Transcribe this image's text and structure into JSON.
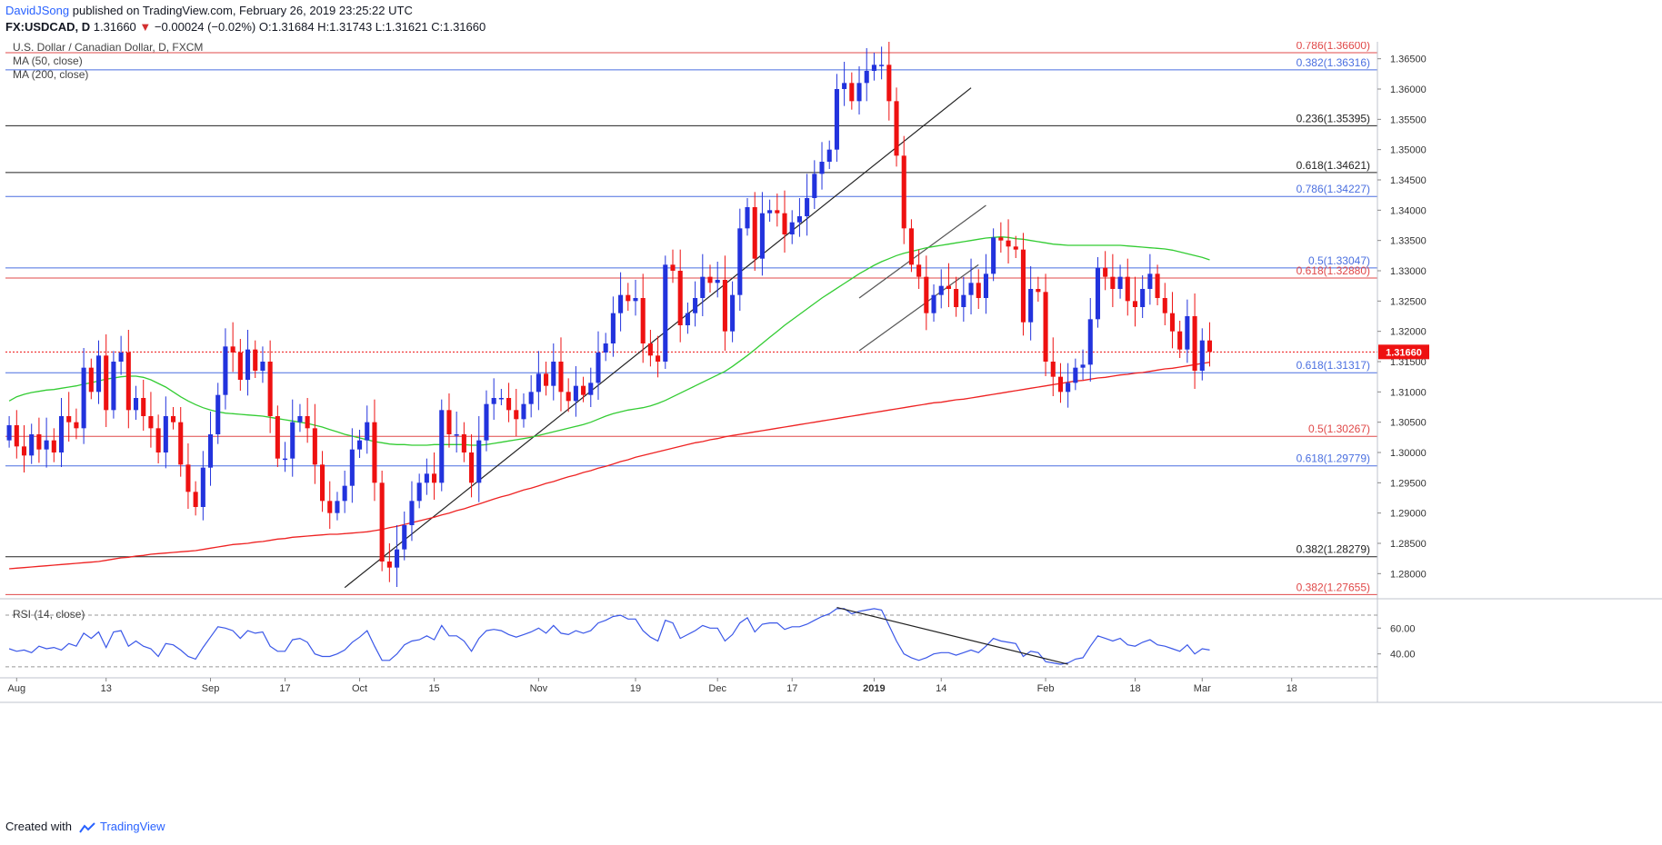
{
  "header": {
    "author": "DavidJSong",
    "published_text": "published on TradingView.com, February 26, 2019 23:25:22 UTC",
    "symbol": "FX:USDCAD, D",
    "last": "1.31660",
    "change_arrow": "▼",
    "change": "−0.00024 (−0.02%)",
    "ohlc": "O:1.31684 H:1.31743 L:1.31621 C:1.31660"
  },
  "legend": {
    "title": "U.S. Dollar / Canadian Dollar, D, FXCM",
    "ma50": "MA (50, close)",
    "ma200": "MA (200, close)",
    "rsi": "RSI (14, close)"
  },
  "footer": {
    "created_with": "Created with",
    "brand": "TradingView"
  },
  "colors": {
    "up": "#2233dd",
    "down": "#ee1111",
    "ma50": "#33cc33",
    "ma200": "#ee2222",
    "fib_red": "#e04848",
    "fib_blue": "#4a6fe0",
    "fib_black": "#222222",
    "rsi": "#3a57e8",
    "price_tag": "#ee1111",
    "grid": "#e8eaf0"
  },
  "chart_data": {
    "type": "candlestick",
    "title": "U.S. Dollar / Canadian Dollar, D, FXCM",
    "ylim": [
      1.276,
      1.3675
    ],
    "y_ticks": [
      "1.36500",
      "1.36000",
      "1.35500",
      "1.35000",
      "1.34500",
      "1.34000",
      "1.33500",
      "1.33000",
      "1.32500",
      "1.32000",
      "1.31500",
      "1.31000",
      "1.30500",
      "1.30000",
      "1.29500",
      "1.29000",
      "1.28500",
      "1.28000"
    ],
    "x_ticks": [
      {
        "label": "Aug",
        "i": 1
      },
      {
        "label": "13",
        "i": 13
      },
      {
        "label": "Sep",
        "i": 27
      },
      {
        "label": "17",
        "i": 37
      },
      {
        "label": "Oct",
        "i": 47
      },
      {
        "label": "15",
        "i": 57
      },
      {
        "label": "Nov",
        "i": 71
      },
      {
        "label": "19",
        "i": 84
      },
      {
        "label": "Dec",
        "i": 95
      },
      {
        "label": "17",
        "i": 105
      },
      {
        "label": "2019",
        "i": 116
      },
      {
        "label": "14",
        "i": 125
      },
      {
        "label": "Feb",
        "i": 139
      },
      {
        "label": "18",
        "i": 151
      },
      {
        "label": "Mar",
        "i": 160
      },
      {
        "label": "18",
        "i": 172
      }
    ],
    "n_slots": 184,
    "last_price_label": "1.31660",
    "levels": [
      {
        "label": "0.786(1.36600)",
        "value": 1.366,
        "color": "red"
      },
      {
        "label": "0.382(1.36316)",
        "value": 1.36316,
        "color": "blue"
      },
      {
        "label": "0.236(1.35395)",
        "value": 1.35395,
        "color": "black"
      },
      {
        "label": "0.618(1.34621)",
        "value": 1.34621,
        "color": "black"
      },
      {
        "label": "0.786(1.34227)",
        "value": 1.34227,
        "color": "blue"
      },
      {
        "label": "0.5(1.33047)",
        "value": 1.33047,
        "color": "blue"
      },
      {
        "label": "0.618(1.32880)",
        "value": 1.3288,
        "color": "red"
      },
      {
        "label": "0.618(1.31317)",
        "value": 1.31317,
        "color": "blue"
      },
      {
        "label": "0.5(1.30267)",
        "value": 1.30267,
        "color": "red"
      },
      {
        "label": "0.618(1.29779)",
        "value": 1.29779,
        "color": "blue"
      },
      {
        "label": "0.382(1.28279)",
        "value": 1.28279,
        "color": "black"
      },
      {
        "label": "0.382(1.27655)",
        "value": 1.27655,
        "color": "red"
      }
    ],
    "closes": [
      1.3045,
      1.301,
      1.2995,
      1.303,
      1.3005,
      1.302,
      1.3,
      1.306,
      1.305,
      1.304,
      1.314,
      1.31,
      1.316,
      1.307,
      1.315,
      1.3165,
      1.307,
      1.309,
      1.306,
      1.304,
      1.3,
      1.306,
      1.305,
      1.298,
      1.2935,
      1.291,
      1.2975,
      1.303,
      1.3095,
      1.3175,
      1.3165,
      1.312,
      1.317,
      1.3135,
      1.315,
      1.306,
      1.299,
      1.299,
      1.305,
      1.306,
      1.304,
      1.298,
      1.292,
      1.29,
      1.292,
      1.2945,
      1.3005,
      1.302,
      1.305,
      1.295,
      1.282,
      1.281,
      1.284,
      1.288,
      1.292,
      1.295,
      1.2965,
      1.295,
      1.307,
      1.303,
      1.303,
      1.3,
      1.295,
      1.302,
      1.308,
      1.309,
      1.309,
      1.307,
      1.3055,
      1.308,
      1.31,
      1.313,
      1.311,
      1.315,
      1.31,
      1.3085,
      1.311,
      1.3095,
      1.3115,
      1.3165,
      1.318,
      1.323,
      1.326,
      1.325,
      1.3255,
      1.318,
      1.316,
      1.315,
      1.331,
      1.33,
      1.321,
      1.323,
      1.3255,
      1.329,
      1.328,
      1.3285,
      1.32,
      1.326,
      1.337,
      1.3405,
      1.332,
      1.3395,
      1.34,
      1.3395,
      1.336,
      1.338,
      1.339,
      1.342,
      1.346,
      1.348,
      1.35,
      1.36,
      1.361,
      1.358,
      1.361,
      1.363,
      1.364,
      1.364,
      1.358,
      1.349,
      1.337,
      1.331,
      1.329,
      1.323,
      1.326,
      1.3275,
      1.327,
      1.324,
      1.326,
      1.328,
      1.3255,
      1.3295,
      1.3355,
      1.335,
      1.334,
      1.3335,
      1.3215,
      1.327,
      1.3265,
      1.315,
      1.3125,
      1.31,
      1.3115,
      1.314,
      1.3145,
      1.322,
      1.3305,
      1.329,
      1.327,
      1.329,
      1.325,
      1.324,
      1.327,
      1.3295,
      1.3255,
      1.323,
      1.32,
      1.317,
      1.3225,
      1.3135,
      1.3185,
      1.3166
    ],
    "ma50": [
      1.3085,
      1.3092,
      1.3096,
      1.3099,
      1.3101,
      1.3103,
      1.3104,
      1.3106,
      1.3108,
      1.311,
      1.3113,
      1.3115,
      1.3118,
      1.3121,
      1.3123,
      1.3125,
      1.3126,
      1.3126,
      1.3124,
      1.312,
      1.3114,
      1.3108,
      1.31,
      1.3092,
      1.3085,
      1.3079,
      1.3074,
      1.307,
      1.3067,
      1.3065,
      1.3064,
      1.3063,
      1.3062,
      1.3061,
      1.306,
      1.3058,
      1.3056,
      1.3054,
      1.3052,
      1.305,
      1.3048,
      1.3045,
      1.3042,
      1.3038,
      1.3034,
      1.303,
      1.3027,
      1.3024,
      1.3021,
      1.3018,
      1.3016,
      1.3014,
      1.3013,
      1.3013,
      1.3012,
      1.3012,
      1.3012,
      1.3013,
      1.3013,
      1.3013,
      1.3013,
      1.3013,
      1.3012,
      1.3012,
      1.3013,
      1.3015,
      1.3017,
      1.3019,
      1.3021,
      1.3023,
      1.3025,
      1.3028,
      1.3031,
      1.3034,
      1.3037,
      1.304,
      1.3043,
      1.3046,
      1.305,
      1.3055,
      1.306,
      1.3064,
      1.3067,
      1.307,
      1.3072,
      1.3074,
      1.3077,
      1.3081,
      1.3086,
      1.3092,
      1.3098,
      1.3104,
      1.311,
      1.3116,
      1.3122,
      1.3128,
      1.3134,
      1.3142,
      1.3151,
      1.316,
      1.317,
      1.318,
      1.319,
      1.32,
      1.321,
      1.3219,
      1.3228,
      1.3237,
      1.3246,
      1.3255,
      1.3263,
      1.3271,
      1.3279,
      1.3287,
      1.3295,
      1.3302,
      1.3309,
      1.3315,
      1.332,
      1.3325,
      1.3329,
      1.3332,
      1.3335,
      1.3338,
      1.334,
      1.3342,
      1.3344,
      1.3346,
      1.3348,
      1.335,
      1.3352,
      1.3354,
      1.3355,
      1.3356,
      1.3355,
      1.3353,
      1.3352,
      1.335,
      1.3348,
      1.3346,
      1.3344,
      1.3343,
      1.3342,
      1.3342,
      1.3342,
      1.3342,
      1.3342,
      1.3342,
      1.3342,
      1.3342,
      1.3341,
      1.334,
      1.3339,
      1.3338,
      1.3337,
      1.3336,
      1.3334,
      1.3331,
      1.3328,
      1.3325,
      1.3322,
      1.3318
    ],
    "ma200": [
      1.2808,
      1.2809,
      1.281,
      1.2811,
      1.2812,
      1.2813,
      1.2814,
      1.2815,
      1.2816,
      1.2817,
      1.2818,
      1.2819,
      1.282,
      1.2822,
      1.2824,
      1.2826,
      1.2827,
      1.2829,
      1.283,
      1.2832,
      1.2833,
      1.2834,
      1.2835,
      1.2836,
      1.2837,
      1.2838,
      1.284,
      1.2842,
      1.2844,
      1.2846,
      1.2848,
      1.2849,
      1.285,
      1.2852,
      1.2853,
      1.2855,
      1.2857,
      1.2858,
      1.286,
      1.2861,
      1.2862,
      1.2863,
      1.2864,
      1.2865,
      1.2865,
      1.2866,
      1.2867,
      1.2868,
      1.2869,
      1.2871,
      1.2873,
      1.2876,
      1.2878,
      1.2881,
      1.2884,
      1.2887,
      1.289,
      1.2893,
      1.2897,
      1.29,
      1.2904,
      1.2907,
      1.2911,
      1.2915,
      1.2919,
      1.2923,
      1.2927,
      1.293,
      1.2934,
      1.2938,
      1.2941,
      1.2945,
      1.2949,
      1.2952,
      1.2956,
      1.296,
      1.2963,
      1.2967,
      1.297,
      1.2974,
      1.2977,
      1.2981,
      1.2985,
      1.2988,
      1.2992,
      1.2995,
      1.2998,
      1.3001,
      1.3004,
      1.3007,
      1.301,
      1.3013,
      1.3016,
      1.3018,
      1.3021,
      1.3023,
      1.3026,
      1.3028,
      1.303,
      1.3032,
      1.3034,
      1.3036,
      1.3038,
      1.304,
      1.3042,
      1.3044,
      1.3046,
      1.3048,
      1.305,
      1.3052,
      1.3054,
      1.3056,
      1.3058,
      1.306,
      1.3062,
      1.3064,
      1.3066,
      1.3068,
      1.307,
      1.3072,
      1.3074,
      1.3076,
      1.3078,
      1.308,
      1.3082,
      1.3083,
      1.3085,
      1.3087,
      1.3088,
      1.309,
      1.3092,
      1.3094,
      1.3096,
      1.3098,
      1.31,
      1.3102,
      1.3104,
      1.3106,
      1.3108,
      1.311,
      1.3112,
      1.3114,
      1.3116,
      1.3118,
      1.3119,
      1.3121,
      1.3123,
      1.3124,
      1.3126,
      1.3128,
      1.3129,
      1.3131,
      1.3132,
      1.3134,
      1.3136,
      1.3138,
      1.3139,
      1.3141,
      1.3143,
      1.3145,
      1.3147,
      1.3149
    ],
    "rsi": {
      "ticks": [
        "60.00",
        "40.00"
      ],
      "ylim": [
        25,
        82
      ],
      "upper": 70,
      "lower": 30,
      "values": [
        44,
        42,
        43,
        41,
        46,
        44,
        45,
        43,
        48,
        46,
        56,
        52,
        57,
        45,
        57,
        58,
        46,
        50,
        46,
        44,
        38,
        48,
        47,
        43,
        38,
        36,
        45,
        53,
        61,
        60,
        58,
        52,
        58,
        56,
        57,
        46,
        42,
        42,
        51,
        52,
        49,
        40,
        38,
        38,
        40,
        43,
        49,
        53,
        58,
        46,
        35,
        35,
        40,
        47,
        50,
        51,
        54,
        51,
        62,
        54,
        54,
        50,
        42,
        52,
        58,
        59,
        58,
        55,
        53,
        55,
        57,
        60,
        56,
        62,
        56,
        55,
        58,
        56,
        58,
        64,
        66,
        69,
        70,
        67,
        67,
        58,
        53,
        50,
        66,
        64,
        52,
        55,
        58,
        62,
        60,
        60,
        50,
        55,
        64,
        68,
        57,
        63,
        64,
        64,
        59,
        61,
        61,
        63,
        66,
        69,
        71,
        75,
        75,
        71,
        73,
        74,
        75,
        74,
        62,
        50,
        40,
        37,
        35,
        37,
        40,
        41,
        41,
        39,
        41,
        43,
        41,
        46,
        52,
        50,
        49,
        48,
        38,
        42,
        41,
        34,
        33,
        32,
        33,
        36,
        37,
        46,
        54,
        52,
        50,
        52,
        47,
        46,
        49,
        51,
        47,
        46,
        44,
        42,
        47,
        40,
        44,
        43
      ]
    }
  }
}
